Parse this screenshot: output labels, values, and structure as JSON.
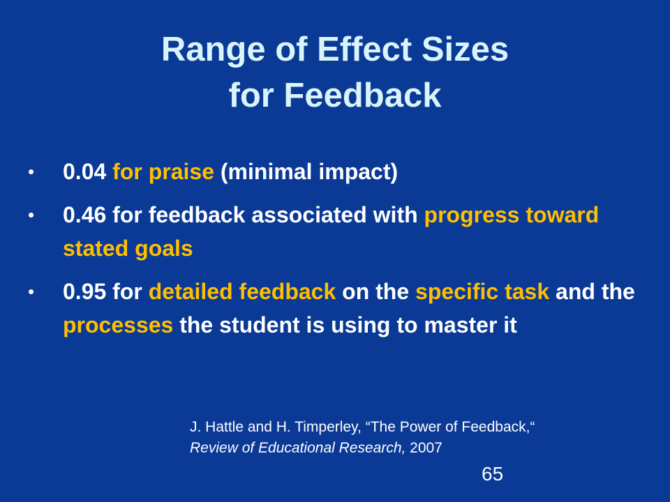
{
  "slide": {
    "background": "#0a3a96",
    "title_color": "#d9f4fb",
    "highlight_color": "#ffbf00",
    "title": {
      "line1": "Range of Effect Sizes",
      "line2": "for Feedback"
    },
    "bullets": [
      {
        "marker": "•",
        "parts": [
          {
            "text": "0.04 ",
            "highlight": false
          },
          {
            "text": "for praise",
            "highlight": true
          },
          {
            "text": " (minimal impact)",
            "highlight": false
          }
        ]
      },
      {
        "marker": "•",
        "parts": [
          {
            "text": "0.46 for feedback associated with ",
            "highlight": false
          },
          {
            "text": "progress toward stated goals",
            "highlight": true
          }
        ]
      },
      {
        "marker": "•",
        "parts": [
          {
            "text": "0.95 for ",
            "highlight": false
          },
          {
            "text": "detailed feedback",
            "highlight": true
          },
          {
            "text": " on the ",
            "highlight": false
          },
          {
            "text": "specific task",
            "highlight": true
          },
          {
            "text": " and the ",
            "highlight": false
          },
          {
            "text": "processes",
            "highlight": true
          },
          {
            "text": " the student is using to master it",
            "highlight": false
          }
        ]
      }
    ],
    "citation": {
      "line1": "J. Hattle and H. Timperley, “The Power of Feedback,“",
      "journal": "Review of Educational Research,",
      "year": " 2007"
    },
    "page_number": "65"
  }
}
